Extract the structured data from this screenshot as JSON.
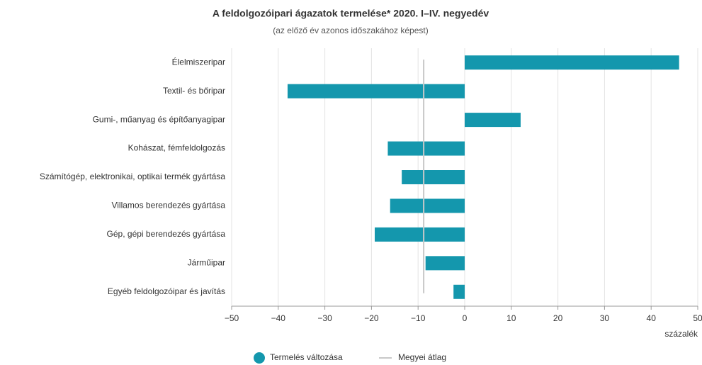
{
  "chart_data": {
    "type": "bar",
    "orientation": "horizontal",
    "title": "A feldolgozóipari ágazatok termelése* 2020. I–IV. negyedév",
    "subtitle": "(az előző év azonos időszakához képest)",
    "x_label": "százalék",
    "categories": [
      "Élelmiszeripar",
      "Textil- és bőripar",
      "Gumi-, műanyag és építőanyagipar",
      "Kohászat, fémfeldolgozás",
      "Számítógép, elektronikai, optikai termék gyártása",
      "Villamos berendezés gyártása",
      "Gép, gépi berendezés gyártása",
      "Járműipar",
      "Egyéb feldolgozóipar és javítás"
    ],
    "series": [
      {
        "name": "Termelés változása",
        "color": "#1497ad",
        "values": [
          46,
          -38,
          12,
          -16.5,
          -13.5,
          -16,
          -19.3,
          -8.4,
          -2.4
        ]
      }
    ],
    "reference": {
      "name": "Megyei átlag",
      "value": -8.8,
      "color": "#c8c8c8"
    },
    "xlim": [
      -50,
      50
    ],
    "xticks": [
      {
        "value": -50,
        "label": "−50"
      },
      {
        "value": -40,
        "label": "−40"
      },
      {
        "value": -30,
        "label": "−30"
      },
      {
        "value": -20,
        "label": "−20"
      },
      {
        "value": -10,
        "label": "−10"
      },
      0,
      10,
      20,
      30,
      40,
      50
    ],
    "grid": true,
    "legend": "bottom"
  }
}
